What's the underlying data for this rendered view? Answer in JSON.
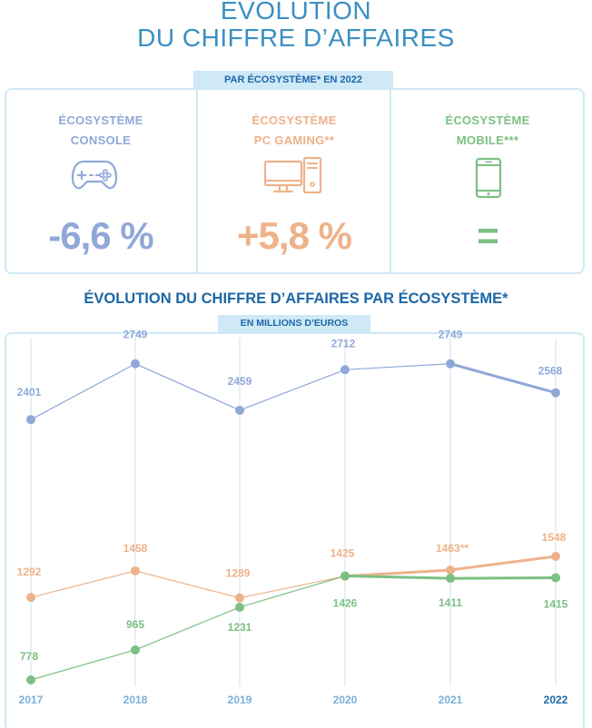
{
  "header": {
    "title_line1": "ÉVOLUTION",
    "title_line2": "DU CHIFFRE D’AFFAIRES"
  },
  "summary": {
    "ribbon": "PAR ÉCOSYSTÈME* EN 2022",
    "items": [
      {
        "line1": "ÉCOSYSTÈME",
        "line2": "CONSOLE",
        "value": "-6,6 %",
        "icon": "gamepad-icon",
        "color": "#90a8d8"
      },
      {
        "line1": "ÉCOSYSTÈME",
        "line2": "PC GAMING**",
        "value": "+5,8 %",
        "icon": "desktop-pc-icon",
        "color": "#eeb28a"
      },
      {
        "line1": "ÉCOSYSTÈME",
        "line2": "MOBILE***",
        "value": "=",
        "icon": "smartphone-icon",
        "color": "#7cc083"
      }
    ]
  },
  "chart_section": {
    "title": "ÉVOLUTION DU CHIFFRE D’AFFAIRES PAR ÉCOSYSTÈME*",
    "ribbon": "EN MILLIONS D’EUROS"
  },
  "chart_data": {
    "type": "line",
    "x": [
      "2017",
      "2018",
      "2019",
      "2020",
      "2021",
      "2022"
    ],
    "highlight_last_x": true,
    "series": [
      {
        "key": "console",
        "color": "#8fa8d8",
        "values": [
          2401,
          2749,
          2459,
          2712,
          2749,
          2568
        ],
        "labels": [
          "2401",
          "2749",
          "2459",
          "2712",
          "2749",
          "2568"
        ]
      },
      {
        "key": "pc",
        "color": "#eeb28a",
        "values": [
          1292,
          1458,
          1289,
          1425,
          1463,
          1548
        ],
        "labels": [
          "1292",
          "1458",
          "1289",
          "1425",
          "1463**",
          "1548"
        ]
      },
      {
        "key": "mobile",
        "color": "#7cc083",
        "values": [
          778,
          965,
          1231,
          1426,
          1411,
          1415
        ],
        "labels": [
          "778",
          "965",
          "1231",
          "1426",
          "1411",
          "1415"
        ]
      }
    ],
    "grid": true
  }
}
